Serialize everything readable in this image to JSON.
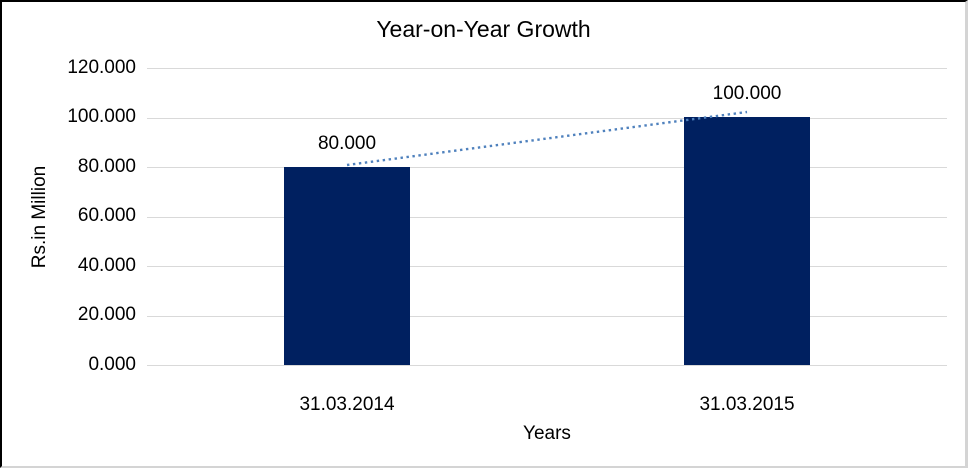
{
  "chart_data": {
    "type": "bar",
    "title": "Year-on-Year Growth",
    "xlabel": "Years",
    "ylabel": "Rs.in Million",
    "categories": [
      "31.03.2014",
      "31.03.2015"
    ],
    "values": [
      80,
      100
    ],
    "data_labels": [
      "80.000",
      "100.000"
    ],
    "value_format": "0.000",
    "ylim": [
      0,
      120
    ],
    "ytick_step": 20,
    "ytick_labels": [
      "120.000",
      "100.000",
      "80.000",
      "60.000",
      "40.000",
      "20.000",
      "0.000"
    ],
    "grid": true,
    "legend": "none",
    "bar_color": "#002060",
    "gridline_color": "#d9d9d9",
    "trendline": {
      "style": "dotted",
      "color": "#4f81bd",
      "from_value": 80,
      "to_value": 100
    }
  }
}
